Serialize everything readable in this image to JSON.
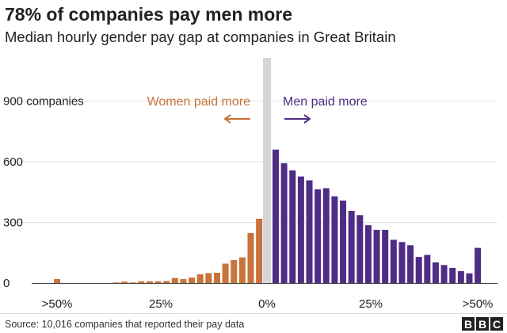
{
  "chart_data": {
    "type": "bar",
    "title": "78% of companies pay men more",
    "subtitle": "Median hourly gender pay gap at companies in Great Britain",
    "ylabel": "900 companies",
    "ylim": [
      0,
      900
    ],
    "yticks": [
      "900 companies",
      "600",
      "300",
      "0"
    ],
    "ytick_values": [
      900,
      600,
      300,
      0
    ],
    "xtick_labels": [
      ">50%",
      "25%",
      "0%",
      "25%",
      ">50%"
    ],
    "bin_width_percent": 2,
    "series": [
      {
        "name": "Women paid more",
        "color": "#c8733a",
        "note": "bins from >50% (left) to 0%",
        "values": [
          20,
          0,
          0,
          0,
          0,
          0,
          0,
          3,
          7,
          3,
          9,
          9,
          9,
          10,
          25,
          20,
          27,
          43,
          49,
          51,
          96,
          114,
          127,
          247,
          318
        ]
      },
      {
        "name": "Men paid more",
        "color": "#4f2d85",
        "note": "bins from 0% to >50% (right)",
        "values": [
          660,
          593,
          557,
          527,
          508,
          464,
          469,
          429,
          408,
          357,
          336,
          286,
          263,
          263,
          214,
          203,
          187,
          129,
          139,
          102,
          89,
          75,
          59,
          48,
          174
        ]
      }
    ],
    "annotations": {
      "women": "Women paid more",
      "men": "Men paid more"
    },
    "source": "Source: 10,016 companies that reported their pay data",
    "logo": "BBC"
  }
}
